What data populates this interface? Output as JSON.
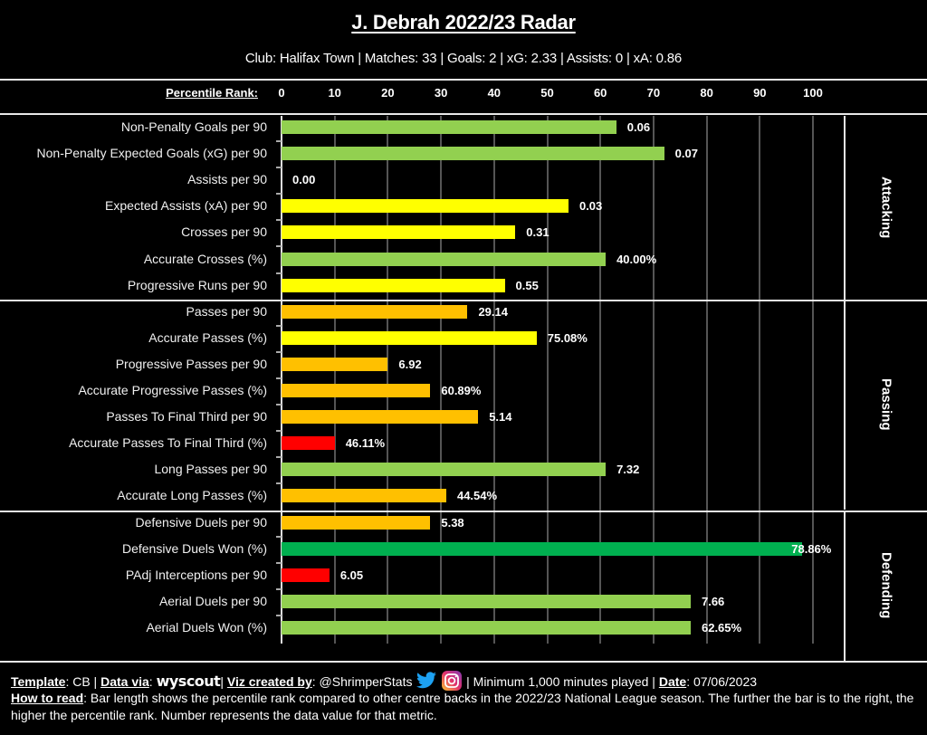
{
  "header": {
    "title": "J. Debrah 2022/23 Radar",
    "subtitle": "Club: Halifax Town | Matches: 33 | Goals: 2 | xG: 2.33 | Assists: 0 | xA: 0.86"
  },
  "colors": {
    "background": "#000000",
    "light_green": "#92D050",
    "dark_green": "#00B050",
    "yellow": "#FFFF00",
    "orange": "#FFC000",
    "red": "#FF0000"
  },
  "chart_data": {
    "type": "bar",
    "orientation": "horizontal",
    "title": "J. Debrah 2022/23 Radar",
    "xlabel": "Percentile Rank:",
    "xlim": [
      0,
      100
    ],
    "xticks": [
      "0",
      "10",
      "20",
      "30",
      "40",
      "50",
      "60",
      "70",
      "80",
      "90",
      "100"
    ],
    "grid": true,
    "sections": [
      {
        "name": "Attacking",
        "rows": [
          {
            "label": "Non-Penalty Goals per 90",
            "percentile": 63,
            "value_label": "0.06",
            "color": "#92D050"
          },
          {
            "label": "Non-Penalty Expected Goals (xG) per 90",
            "percentile": 72,
            "value_label": "0.07",
            "color": "#92D050"
          },
          {
            "label": "Assists per 90",
            "percentile": 0,
            "value_label": "0.00",
            "color": "#FF0000"
          },
          {
            "label": "Expected Assists (xA) per 90",
            "percentile": 54,
            "value_label": "0.03",
            "color": "#FFFF00"
          },
          {
            "label": "Crosses per 90",
            "percentile": 44,
            "value_label": "0.31",
            "color": "#FFFF00"
          },
          {
            "label": "Accurate Crosses (%)",
            "percentile": 61,
            "value_label": "40.00%",
            "color": "#92D050"
          },
          {
            "label": "Progressive Runs per 90",
            "percentile": 42,
            "value_label": "0.55",
            "color": "#FFFF00"
          }
        ]
      },
      {
        "name": "Passing",
        "rows": [
          {
            "label": "Passes per 90",
            "percentile": 35,
            "value_label": "29.14",
            "color": "#FFC000"
          },
          {
            "label": "Accurate Passes (%)",
            "percentile": 48,
            "value_label": "75.08%",
            "color": "#FFFF00"
          },
          {
            "label": "Progressive Passes per 90",
            "percentile": 20,
            "value_label": "6.92",
            "color": "#FFC000"
          },
          {
            "label": "Accurate Progressive Passes (%)",
            "percentile": 28,
            "value_label": "60.89%",
            "color": "#FFC000"
          },
          {
            "label": "Passes To Final Third per 90",
            "percentile": 37,
            "value_label": "5.14",
            "color": "#FFC000"
          },
          {
            "label": "Accurate Passes To Final Third (%)",
            "percentile": 10,
            "value_label": "46.11%",
            "color": "#FF0000"
          },
          {
            "label": "Long Passes per 90",
            "percentile": 61,
            "value_label": "7.32",
            "color": "#92D050"
          },
          {
            "label": "Accurate Long Passes (%)",
            "percentile": 31,
            "value_label": "44.54%",
            "color": "#FFC000"
          }
        ]
      },
      {
        "name": "Defending",
        "rows": [
          {
            "label": "Defensive Duels per 90",
            "percentile": 28,
            "value_label": "5.38",
            "color": "#FFC000"
          },
          {
            "label": "Defensive Duels Won (%)",
            "percentile": 98,
            "value_label": "78.86%",
            "color": "#00B050"
          },
          {
            "label": "PAdj Interceptions per 90",
            "percentile": 9,
            "value_label": "6.05",
            "color": "#FF0000"
          },
          {
            "label": "Aerial Duels per 90",
            "percentile": 77,
            "value_label": "7.66",
            "color": "#92D050"
          },
          {
            "label": "Aerial Duels Won (%)",
            "percentile": 77,
            "value_label": "62.65%",
            "color": "#92D050"
          }
        ]
      }
    ]
  },
  "footer": {
    "template_label": "Template",
    "template_value": ": CB | ",
    "data_via_label": "Data via",
    "data_via_sep": ": ",
    "data_source": "wyscout",
    "viz_label": "Viz created by",
    "viz_value": ": @ShrimperStats",
    "twitter_icon": "twitter-bird-icon",
    "instagram_icon": "instagram-icon",
    "min_minutes": " | Minimum 1,000 minutes played | ",
    "date_label": "Date",
    "date_value": ": 07/06/2023",
    "how_to_label": "How to read",
    "how_to_text": ": Bar length shows the percentile rank compared to other centre backs in the 2022/23 National League season. The further the bar is to the right, the higher the percentile rank. Number represents the data value for that metric."
  }
}
